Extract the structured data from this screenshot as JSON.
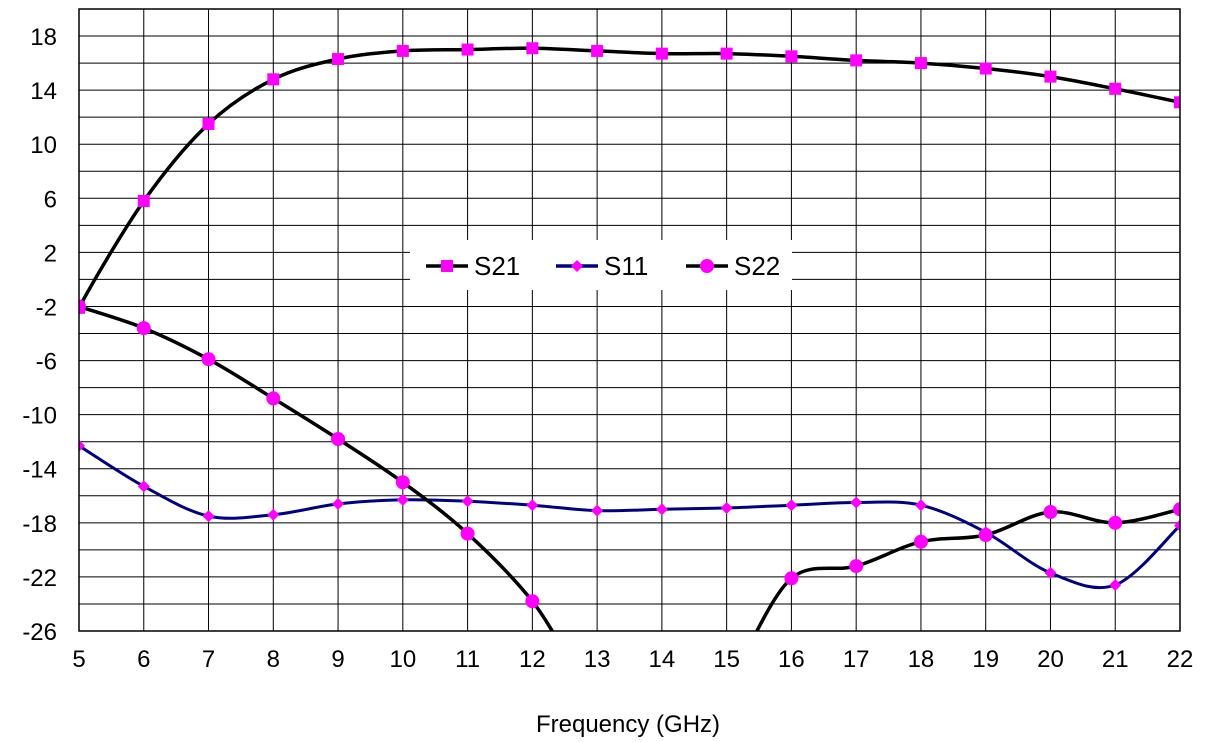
{
  "chart_data": {
    "type": "line",
    "title": "",
    "xlabel": "Frequency (GHz)",
    "ylabel": "",
    "xlim": [
      5,
      22
    ],
    "ylim": [
      -26,
      20
    ],
    "x_ticks": [
      5,
      6,
      7,
      8,
      9,
      10,
      11,
      12,
      13,
      14,
      15,
      16,
      17,
      18,
      19,
      20,
      21,
      22
    ],
    "y_ticks": [
      18,
      14,
      10,
      6,
      2,
      -2,
      -6,
      -10,
      -14,
      -18,
      -22,
      -26
    ],
    "grid": true,
    "legend_position": "center",
    "series": [
      {
        "name": "S21",
        "color": "#000000",
        "marker": "square",
        "marker_color": "#ff00ff",
        "x": [
          5,
          6,
          7,
          8,
          9,
          10,
          11,
          12,
          13,
          14,
          15,
          16,
          17,
          18,
          19,
          20,
          21,
          22
        ],
        "y": [
          -2.1,
          5.8,
          11.5,
          14.8,
          16.3,
          16.9,
          17.0,
          17.1,
          16.9,
          16.7,
          16.7,
          16.5,
          16.2,
          16.0,
          15.6,
          15.0,
          14.1,
          13.1
        ]
      },
      {
        "name": "S11",
        "color": "#000080",
        "marker": "diamond",
        "marker_color": "#ff00ff",
        "x": [
          5,
          6,
          7,
          8,
          9,
          10,
          11,
          12,
          13,
          14,
          15,
          16,
          17,
          18,
          19,
          20,
          21,
          22
        ],
        "y": [
          -12.3,
          -15.3,
          -17.5,
          -17.4,
          -16.6,
          -16.3,
          -16.4,
          -16.7,
          -17.1,
          -17.0,
          -16.9,
          -16.7,
          -16.5,
          -16.7,
          -18.7,
          -21.7,
          -22.6,
          -18.2
        ]
      },
      {
        "name": "S22",
        "color": "#000000",
        "marker": "circle",
        "marker_color": "#ff00ff",
        "x": [
          5,
          6,
          7,
          8,
          9,
          10,
          11,
          12,
          16,
          17,
          18,
          19,
          20,
          21,
          22
        ],
        "y": [
          -2.0,
          -3.6,
          -5.9,
          -8.8,
          -11.8,
          -15.0,
          -18.8,
          -23.8,
          -22.1,
          -21.2,
          -19.4,
          -18.9,
          -17.2,
          -18.0,
          -17.0
        ]
      }
    ]
  }
}
